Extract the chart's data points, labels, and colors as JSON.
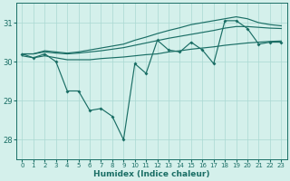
{
  "xlabel": "Humidex (Indice chaleur)",
  "background_color": "#d4f0eb",
  "grid_color": "#aad8d2",
  "line_color": "#1a6e65",
  "xlim": [
    -0.5,
    23.5
  ],
  "ylim": [
    27.5,
    31.5
  ],
  "yticks": [
    28,
    29,
    30,
    31
  ],
  "xticks": [
    0,
    1,
    2,
    3,
    4,
    5,
    6,
    7,
    8,
    9,
    10,
    11,
    12,
    13,
    14,
    15,
    16,
    17,
    18,
    19,
    20,
    21,
    22,
    23
  ],
  "line_jagged": [
    30.2,
    30.1,
    30.2,
    30.0,
    29.25,
    29.25,
    28.75,
    28.8,
    28.6,
    28.0,
    29.95,
    29.7,
    30.55,
    30.3,
    30.25,
    30.5,
    30.3,
    29.95,
    31.05,
    31.05,
    30.85,
    30.45,
    30.5,
    30.5
  ],
  "line_low": [
    30.15,
    30.1,
    30.15,
    30.1,
    30.05,
    30.05,
    30.05,
    30.08,
    30.1,
    30.12,
    30.15,
    30.18,
    30.2,
    30.25,
    30.28,
    30.32,
    30.35,
    30.38,
    30.42,
    30.45,
    30.48,
    30.5,
    30.52,
    30.53
  ],
  "line_mid": [
    30.2,
    30.2,
    30.25,
    30.22,
    30.2,
    30.22,
    30.25,
    30.28,
    30.32,
    30.36,
    30.42,
    30.48,
    30.54,
    30.6,
    30.65,
    30.7,
    30.75,
    30.8,
    30.86,
    30.9,
    30.9,
    30.88,
    30.86,
    30.85
  ],
  "line_high": [
    30.2,
    30.2,
    30.28,
    30.25,
    30.22,
    30.25,
    30.3,
    30.35,
    30.4,
    30.45,
    30.55,
    30.63,
    30.72,
    30.8,
    30.87,
    30.95,
    31.0,
    31.05,
    31.1,
    31.15,
    31.1,
    31.0,
    30.95,
    30.92
  ]
}
